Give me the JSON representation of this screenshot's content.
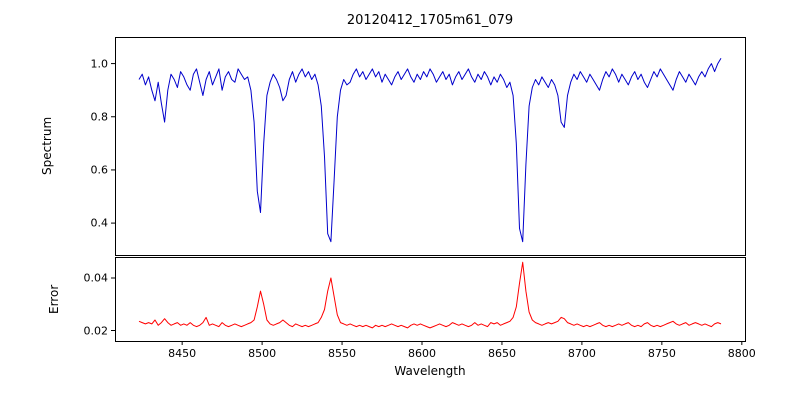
{
  "figure": {
    "background": "#ffffff"
  },
  "chart_data": {
    "type": "line",
    "title": "20120412_1705m61_079",
    "xlabel": "Wavelength",
    "x_start": 8423,
    "x_step": 2,
    "xlim": [
      8408,
      8802
    ],
    "x_ticks": [
      8450,
      8500,
      8550,
      8600,
      8650,
      8700,
      8750,
      8800
    ],
    "x_tick_labels": [
      "8450",
      "8500",
      "8550",
      "8600",
      "8650",
      "8700",
      "8750",
      "8800"
    ],
    "subplots": [
      {
        "name": "spectrum",
        "ylabel": "Spectrum",
        "color": "#0000cc",
        "ylim": [
          0.28,
          1.1
        ],
        "y_ticks": [
          1.0,
          0.8,
          0.6,
          0.4
        ],
        "y_tick_labels": [
          "1.0",
          "0.8",
          "0.6",
          "0.4"
        ],
        "values": [
          0.94,
          0.96,
          0.92,
          0.95,
          0.9,
          0.86,
          0.93,
          0.85,
          0.78,
          0.9,
          0.96,
          0.94,
          0.91,
          0.97,
          0.95,
          0.92,
          0.9,
          0.96,
          0.98,
          0.93,
          0.88,
          0.94,
          0.97,
          0.92,
          0.95,
          0.98,
          0.9,
          0.95,
          0.97,
          0.94,
          0.93,
          0.98,
          0.96,
          0.94,
          0.95,
          0.9,
          0.78,
          0.52,
          0.44,
          0.7,
          0.88,
          0.93,
          0.96,
          0.94,
          0.91,
          0.86,
          0.88,
          0.94,
          0.97,
          0.93,
          0.96,
          0.98,
          0.95,
          0.97,
          0.94,
          0.96,
          0.92,
          0.84,
          0.65,
          0.36,
          0.33,
          0.56,
          0.8,
          0.9,
          0.94,
          0.92,
          0.93,
          0.96,
          0.98,
          0.95,
          0.97,
          0.94,
          0.96,
          0.98,
          0.95,
          0.97,
          0.93,
          0.96,
          0.94,
          0.92,
          0.95,
          0.97,
          0.94,
          0.96,
          0.98,
          0.95,
          0.93,
          0.96,
          0.94,
          0.97,
          0.95,
          0.98,
          0.96,
          0.93,
          0.95,
          0.97,
          0.94,
          0.96,
          0.92,
          0.95,
          0.97,
          0.94,
          0.96,
          0.98,
          0.95,
          0.93,
          0.96,
          0.94,
          0.97,
          0.95,
          0.92,
          0.95,
          0.93,
          0.96,
          0.94,
          0.91,
          0.93,
          0.88,
          0.7,
          0.38,
          0.33,
          0.62,
          0.84,
          0.91,
          0.94,
          0.92,
          0.95,
          0.93,
          0.91,
          0.94,
          0.92,
          0.88,
          0.78,
          0.76,
          0.88,
          0.93,
          0.96,
          0.94,
          0.97,
          0.95,
          0.93,
          0.96,
          0.94,
          0.92,
          0.9,
          0.94,
          0.97,
          0.95,
          0.98,
          0.96,
          0.93,
          0.96,
          0.94,
          0.92,
          0.95,
          0.97,
          0.94,
          0.96,
          0.93,
          0.91,
          0.94,
          0.97,
          0.95,
          0.98,
          0.96,
          0.94,
          0.92,
          0.9,
          0.94,
          0.97,
          0.95,
          0.93,
          0.96,
          0.94,
          0.92,
          0.95,
          0.97,
          0.95,
          0.98,
          1.0,
          0.97,
          1.0,
          1.02
        ]
      },
      {
        "name": "error",
        "ylabel": "Error",
        "color": "#ff0000",
        "ylim": [
          0.016,
          0.048
        ],
        "y_ticks": [
          0.04,
          0.02
        ],
        "y_tick_labels": [
          "0.04",
          "0.02"
        ],
        "values": [
          0.0235,
          0.023,
          0.0225,
          0.023,
          0.0225,
          0.024,
          0.022,
          0.023,
          0.0245,
          0.023,
          0.022,
          0.0225,
          0.023,
          0.022,
          0.0225,
          0.022,
          0.023,
          0.022,
          0.0215,
          0.022,
          0.023,
          0.025,
          0.022,
          0.0225,
          0.022,
          0.0215,
          0.023,
          0.022,
          0.0215,
          0.022,
          0.0225,
          0.022,
          0.0215,
          0.022,
          0.0225,
          0.023,
          0.024,
          0.029,
          0.035,
          0.03,
          0.024,
          0.0225,
          0.022,
          0.0225,
          0.023,
          0.024,
          0.023,
          0.022,
          0.0215,
          0.0225,
          0.022,
          0.0215,
          0.022,
          0.0215,
          0.022,
          0.0225,
          0.023,
          0.025,
          0.028,
          0.035,
          0.04,
          0.033,
          0.026,
          0.023,
          0.0225,
          0.022,
          0.0225,
          0.022,
          0.0215,
          0.022,
          0.0215,
          0.022,
          0.0215,
          0.021,
          0.022,
          0.0215,
          0.022,
          0.0215,
          0.022,
          0.0225,
          0.022,
          0.0215,
          0.022,
          0.0215,
          0.021,
          0.022,
          0.0225,
          0.022,
          0.0225,
          0.022,
          0.0215,
          0.021,
          0.0215,
          0.022,
          0.0225,
          0.022,
          0.0215,
          0.022,
          0.023,
          0.0225,
          0.022,
          0.0225,
          0.022,
          0.0215,
          0.022,
          0.023,
          0.022,
          0.0225,
          0.022,
          0.0215,
          0.023,
          0.0225,
          0.023,
          0.022,
          0.0225,
          0.023,
          0.0235,
          0.025,
          0.029,
          0.038,
          0.046,
          0.035,
          0.027,
          0.024,
          0.023,
          0.0225,
          0.022,
          0.0225,
          0.023,
          0.0225,
          0.023,
          0.0235,
          0.025,
          0.0245,
          0.023,
          0.0225,
          0.022,
          0.0225,
          0.022,
          0.0215,
          0.022,
          0.0215,
          0.022,
          0.0225,
          0.023,
          0.022,
          0.0215,
          0.022,
          0.0215,
          0.022,
          0.0225,
          0.022,
          0.0225,
          0.023,
          0.022,
          0.0215,
          0.022,
          0.0215,
          0.0225,
          0.023,
          0.022,
          0.0215,
          0.022,
          0.0215,
          0.022,
          0.0225,
          0.023,
          0.0235,
          0.0225,
          0.022,
          0.0225,
          0.023,
          0.022,
          0.0225,
          0.023,
          0.0225,
          0.022,
          0.0225,
          0.022,
          0.0215,
          0.0225,
          0.023,
          0.0225
        ]
      }
    ]
  }
}
